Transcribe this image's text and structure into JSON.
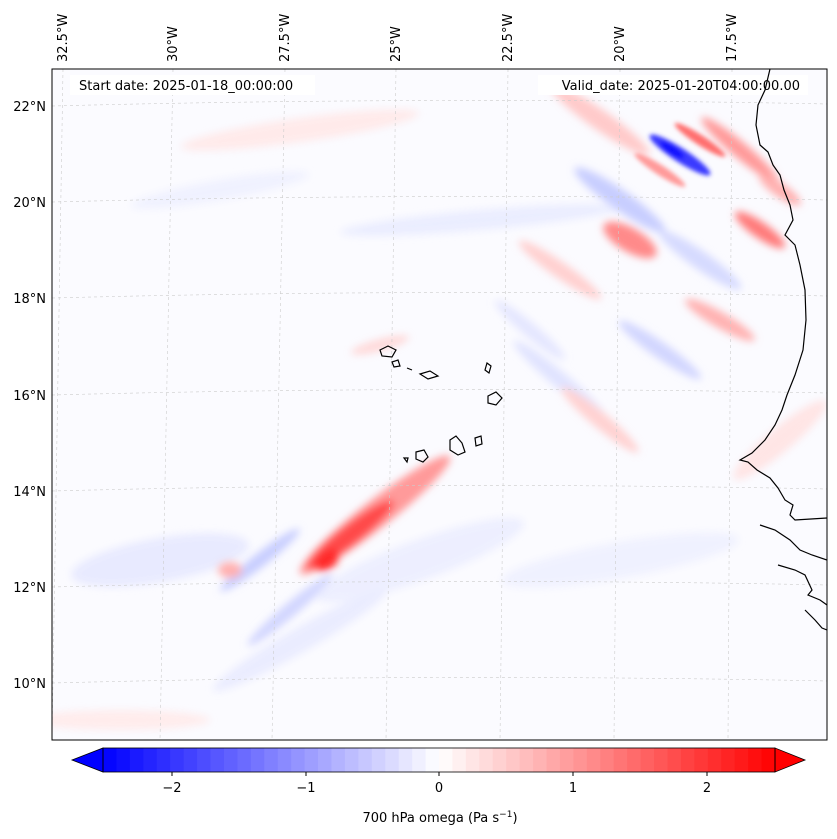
{
  "header": {
    "start_date": "Start date: 2025-01-18_00:00:00",
    "valid_date": "Valid_date: 2025-01-20T04:00:00.00"
  },
  "axes": {
    "lon_labels": [
      "32.5°W",
      "30°W",
      "27.5°W",
      "25°W",
      "22.5°W",
      "20°W",
      "17.5°W"
    ],
    "lat_labels": [
      "22°N",
      "20°N",
      "18°N",
      "16°N",
      "14°N",
      "12°N",
      "10°N"
    ]
  },
  "colorbar": {
    "label": "700 hPa omega (Pa s",
    "label_sup": "−1",
    "label_close": ")",
    "ticks": [
      "−2",
      "−1",
      "0",
      "1",
      "2"
    ],
    "min": -2.75,
    "max": 2.75,
    "tick_values": [
      -2,
      -1,
      0,
      1,
      2
    ]
  },
  "colors": {
    "negative": "#0000ff",
    "neutral": "#ffffff",
    "positive": "#ff0000",
    "coast": "#000000"
  }
}
